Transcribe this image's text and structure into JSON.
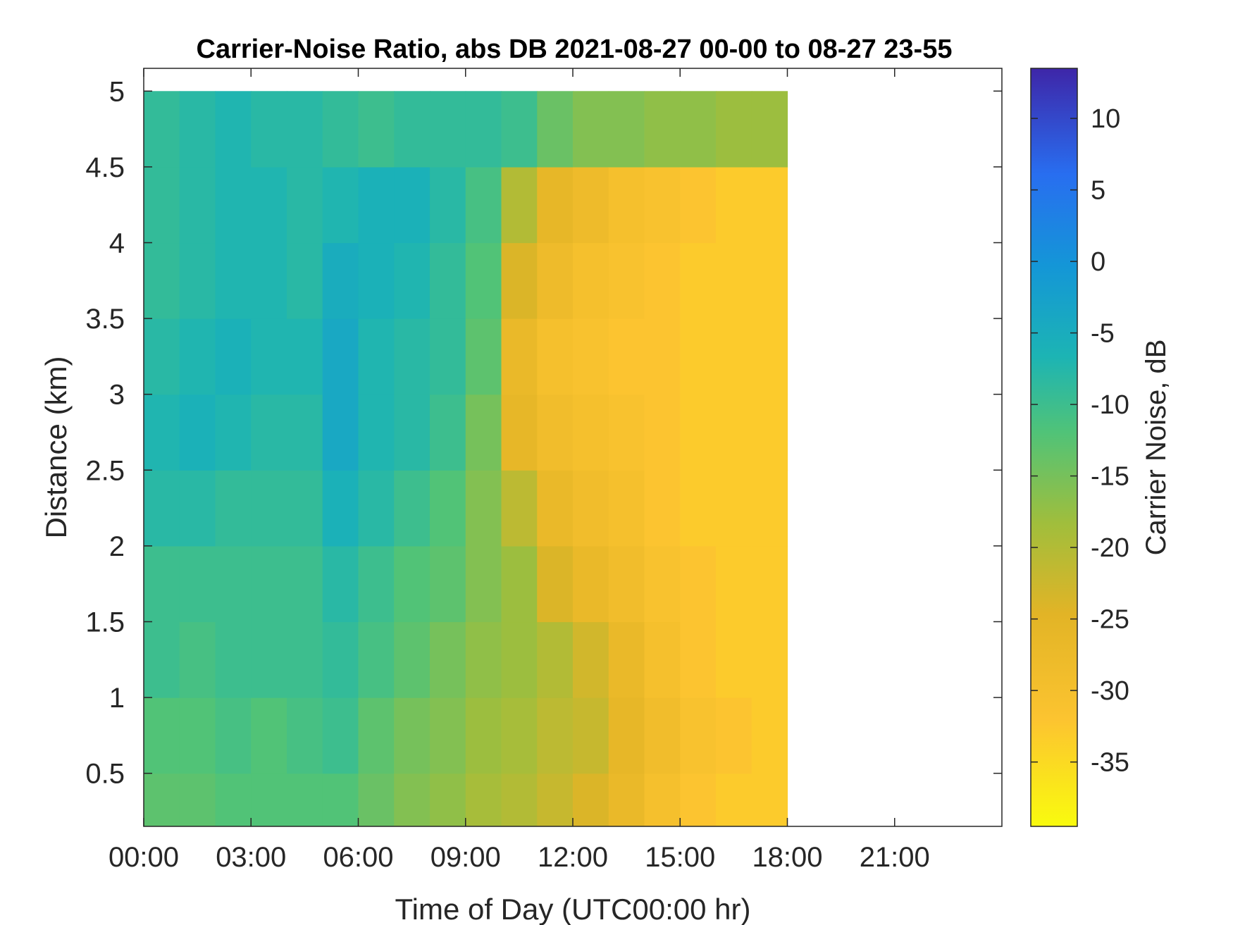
{
  "chart_data": {
    "type": "heatmap",
    "title": "Carrier-Noise Ratio, abs DB 2021-08-27 00-00 to 08-27 23-55",
    "xlabel": "Time of Day (UTC00:00 hr)",
    "ylabel": "Distance (km)",
    "colorbar_label": "Carrier Noise, dB",
    "x_unit": "hours",
    "xlim": [
      0,
      24
    ],
    "ylim": [
      0.15,
      5.15
    ],
    "clim": [
      -39.5,
      13.5
    ],
    "x_ticks": [
      0,
      3,
      6,
      9,
      12,
      15,
      18,
      21
    ],
    "x_tick_labels": [
      "00:00",
      "03:00",
      "06:00",
      "09:00",
      "12:00",
      "15:00",
      "18:00",
      "21:00"
    ],
    "y_ticks": [
      0.5,
      1,
      1.5,
      2,
      2.5,
      3,
      3.5,
      4,
      4.5,
      5
    ],
    "y_tick_labels": [
      "0.5",
      "1",
      "1.5",
      "2",
      "2.5",
      "3",
      "3.5",
      "4",
      "4.5",
      "5"
    ],
    "colorbar_ticks": [
      10,
      5,
      0,
      -5,
      -10,
      -15,
      -20,
      -25,
      -30,
      -35
    ],
    "colorbar_tick_labels": [
      "10",
      "5",
      "0",
      "-5",
      "-10",
      "-15",
      "-20",
      "-25",
      "-30",
      "-35"
    ],
    "colormap": "parula",
    "grid": false,
    "time_step_hours": 1,
    "range_gates_km": [
      0.25,
      0.75,
      1.25,
      1.75,
      2.25,
      2.75,
      3.25,
      3.75,
      4.25,
      4.75
    ],
    "z": [
      [
        -13,
        -12,
        -10,
        -10,
        -8,
        -7,
        -8,
        -9,
        -9,
        -9
      ],
      [
        -13,
        -12,
        -11,
        -10,
        -8,
        -6,
        -7,
        -8,
        -8,
        -8
      ],
      [
        -12,
        -11,
        -10,
        -10,
        -9,
        -7,
        -6,
        -7,
        -7,
        -7
      ],
      [
        -12,
        -12,
        -10,
        -10,
        -9,
        -8,
        -7,
        -7,
        -7,
        -8
      ],
      [
        -12,
        -11,
        -10,
        -10,
        -9,
        -8,
        -7,
        -8,
        -8,
        -8
      ],
      [
        -12,
        -10,
        -9,
        -8,
        -6,
        -4,
        -4,
        -5,
        -7,
        -9
      ],
      [
        -14,
        -13,
        -11,
        -10,
        -8,
        -7,
        -7,
        -6,
        -6,
        -10
      ],
      [
        -16,
        -15,
        -13,
        -12,
        -10,
        -8,
        -8,
        -7,
        -6,
        -9
      ],
      [
        -17,
        -16,
        -15,
        -13,
        -12,
        -10,
        -9,
        -9,
        -8,
        -9
      ],
      [
        -19,
        -18,
        -17,
        -16,
        -16,
        -15,
        -13,
        -12,
        -11,
        -9
      ],
      [
        -20,
        -19,
        -18,
        -18,
        -21,
        -26,
        -27,
        -24,
        -20,
        -10
      ],
      [
        -22,
        -21,
        -20,
        -24,
        -27,
        -29,
        -30,
        -28,
        -26,
        -14
      ],
      [
        -24,
        -22,
        -23,
        -27,
        -29,
        -30,
        -31,
        -30,
        -28,
        -16
      ],
      [
        -27,
        -26,
        -27,
        -29,
        -30,
        -31,
        -32,
        -31,
        -30,
        -16
      ],
      [
        -30,
        -29,
        -30,
        -31,
        -32,
        -32,
        -32,
        -32,
        -31,
        -17
      ],
      [
        -32,
        -31,
        -32,
        -32,
        -33,
        -33,
        -33,
        -33,
        -32,
        -17
      ],
      [
        -33,
        -32,
        -33,
        -33,
        -33,
        -33,
        -33,
        -33,
        -33,
        -18
      ],
      [
        -33,
        -33,
        -33,
        -33,
        -33,
        -33,
        -33,
        -33,
        -33,
        -18
      ]
    ]
  }
}
